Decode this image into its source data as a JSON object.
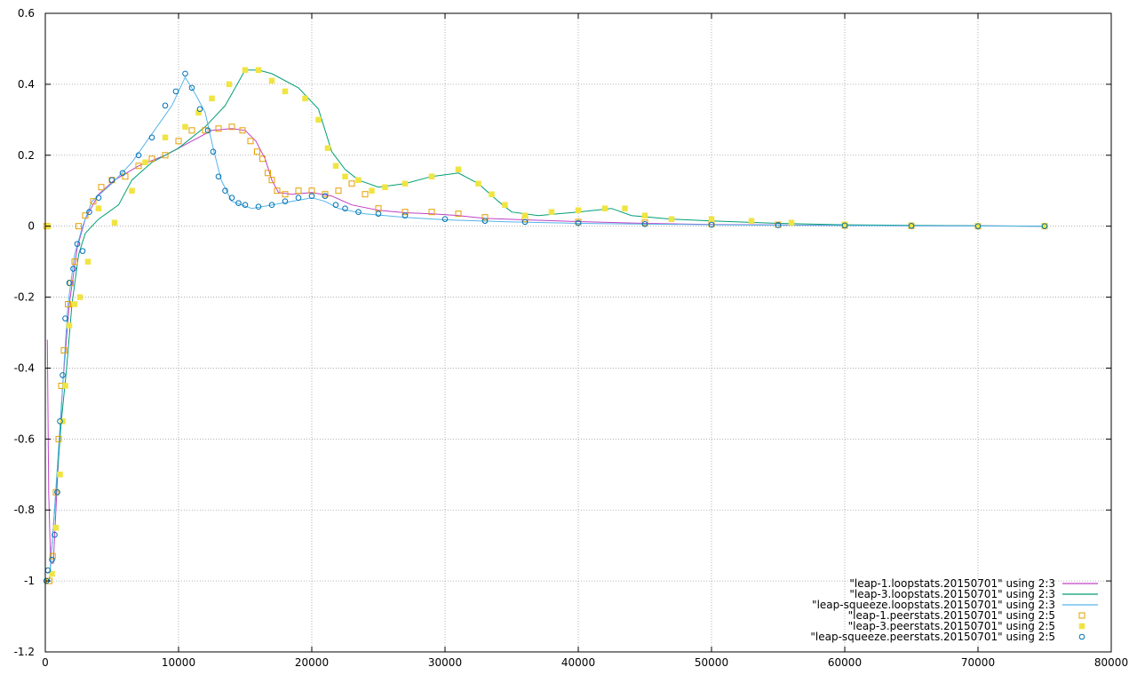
{
  "chart_data": {
    "type": "scatter",
    "title": "",
    "xlabel": "",
    "ylabel": "",
    "xlim": [
      0,
      80000
    ],
    "ylim": [
      -1.2,
      0.6
    ],
    "x_ticks": [
      0,
      10000,
      20000,
      30000,
      40000,
      50000,
      60000,
      70000,
      80000
    ],
    "x_tick_labels": [
      "0",
      "10000",
      "20000",
      "30000",
      "40000",
      "50000",
      "60000",
      "70000",
      "80000"
    ],
    "y_ticks": [
      0.6,
      0.4,
      0.2,
      0,
      -0.2,
      -0.4,
      -0.6,
      -0.8,
      -1,
      -1.2
    ],
    "y_tick_labels": [
      "0.6",
      "0.4",
      "0.2",
      "0",
      "-0.2",
      "-0.4",
      "-0.6",
      "-0.8",
      "-1",
      "-1.2"
    ],
    "grid": true,
    "legend_position": "bottom-right",
    "series": [
      {
        "name": "\"leap-1.loopstats.20150701\" using 2:3",
        "style": "line",
        "color": "#c040c8",
        "points": [
          [
            150,
            -0.32
          ],
          [
            250,
            -0.75
          ],
          [
            400,
            -0.95
          ],
          [
            600,
            -0.95
          ],
          [
            900,
            -0.72
          ],
          [
            1300,
            -0.45
          ],
          [
            1800,
            -0.22
          ],
          [
            2400,
            -0.06
          ],
          [
            3000,
            0.02
          ],
          [
            4000,
            0.09
          ],
          [
            5200,
            0.13
          ],
          [
            7000,
            0.17
          ],
          [
            9000,
            0.2
          ],
          [
            11000,
            0.24
          ],
          [
            12500,
            0.27
          ],
          [
            14000,
            0.275
          ],
          [
            15000,
            0.27
          ],
          [
            15800,
            0.24
          ],
          [
            16500,
            0.19
          ],
          [
            17000,
            0.13
          ],
          [
            17500,
            0.095
          ],
          [
            18500,
            0.09
          ],
          [
            20000,
            0.095
          ],
          [
            21500,
            0.085
          ],
          [
            23000,
            0.06
          ],
          [
            25000,
            0.045
          ],
          [
            27000,
            0.038
          ],
          [
            29000,
            0.035
          ],
          [
            31000,
            0.03
          ],
          [
            33000,
            0.022
          ],
          [
            36000,
            0.018
          ],
          [
            40000,
            0.013
          ],
          [
            45000,
            0.008
          ],
          [
            50000,
            0.005
          ],
          [
            60000,
            0.002
          ],
          [
            70000,
            0.001
          ],
          [
            75000,
            0.0
          ]
        ]
      },
      {
        "name": "\"leap-3.loopstats.20150701\" using 2:3",
        "style": "line",
        "color": "#009e73",
        "points": [
          [
            150,
            -1.0
          ],
          [
            300,
            -1.0
          ],
          [
            500,
            -0.9
          ],
          [
            800,
            -0.75
          ],
          [
            1200,
            -0.55
          ],
          [
            1600,
            -0.4
          ],
          [
            2000,
            -0.22
          ],
          [
            2500,
            -0.08
          ],
          [
            3000,
            -0.02
          ],
          [
            4000,
            0.02
          ],
          [
            5500,
            0.06
          ],
          [
            6500,
            0.13
          ],
          [
            8000,
            0.18
          ],
          [
            10000,
            0.22
          ],
          [
            12000,
            0.28
          ],
          [
            13500,
            0.34
          ],
          [
            15000,
            0.44
          ],
          [
            16000,
            0.44
          ],
          [
            17000,
            0.43
          ],
          [
            19000,
            0.39
          ],
          [
            20500,
            0.33
          ],
          [
            21500,
            0.21
          ],
          [
            22500,
            0.16
          ],
          [
            23500,
            0.13
          ],
          [
            25000,
            0.11
          ],
          [
            27000,
            0.12
          ],
          [
            29000,
            0.14
          ],
          [
            31000,
            0.15
          ],
          [
            32500,
            0.12
          ],
          [
            34000,
            0.07
          ],
          [
            35000,
            0.04
          ],
          [
            37000,
            0.03
          ],
          [
            40000,
            0.04
          ],
          [
            42500,
            0.05
          ],
          [
            44000,
            0.03
          ],
          [
            47000,
            0.02
          ],
          [
            50000,
            0.015
          ],
          [
            55000,
            0.008
          ],
          [
            60000,
            0.004
          ],
          [
            70000,
            0.001
          ],
          [
            75000,
            0.0
          ]
        ]
      },
      {
        "name": "\"leap-squeeze.loopstats.20150701\" using 2:3",
        "style": "line",
        "color": "#56b4e9",
        "points": [
          [
            150,
            -0.98
          ],
          [
            350,
            -0.97
          ],
          [
            600,
            -0.85
          ],
          [
            900,
            -0.68
          ],
          [
            1300,
            -0.45
          ],
          [
            1700,
            -0.22
          ],
          [
            2200,
            -0.08
          ],
          [
            2800,
            0.0
          ],
          [
            3500,
            0.07
          ],
          [
            5000,
            0.12
          ],
          [
            6500,
            0.18
          ],
          [
            8000,
            0.26
          ],
          [
            9500,
            0.34
          ],
          [
            10500,
            0.42
          ],
          [
            11300,
            0.37
          ],
          [
            12000,
            0.32
          ],
          [
            12600,
            0.22
          ],
          [
            13200,
            0.13
          ],
          [
            14000,
            0.07
          ],
          [
            15500,
            0.05
          ],
          [
            17000,
            0.06
          ],
          [
            18500,
            0.07
          ],
          [
            20000,
            0.08
          ],
          [
            21000,
            0.07
          ],
          [
            22000,
            0.05
          ],
          [
            24000,
            0.035
          ],
          [
            27000,
            0.025
          ],
          [
            30000,
            0.018
          ],
          [
            35000,
            0.012
          ],
          [
            40000,
            0.008
          ],
          [
            50000,
            0.004
          ],
          [
            60000,
            0.002
          ],
          [
            75000,
            0.0
          ]
        ]
      },
      {
        "name": "\"leap-1.peerstats.20150701\" using 2:5",
        "style": "marker-open-square",
        "color": "#e69f00",
        "points": [
          [
            100,
            0.0
          ],
          [
            300,
            -1.0
          ],
          [
            550,
            -0.93
          ],
          [
            800,
            -0.75
          ],
          [
            1000,
            -0.6
          ],
          [
            1200,
            -0.45
          ],
          [
            1400,
            -0.35
          ],
          [
            1700,
            -0.22
          ],
          [
            1900,
            -0.16
          ],
          [
            2200,
            -0.1
          ],
          [
            2500,
            0.0
          ],
          [
            3000,
            0.03
          ],
          [
            3600,
            0.07
          ],
          [
            4200,
            0.11
          ],
          [
            5000,
            0.13
          ],
          [
            6000,
            0.14
          ],
          [
            7000,
            0.17
          ],
          [
            8000,
            0.19
          ],
          [
            9000,
            0.2
          ],
          [
            10000,
            0.24
          ],
          [
            11000,
            0.27
          ],
          [
            12000,
            0.27
          ],
          [
            13000,
            0.275
          ],
          [
            14000,
            0.28
          ],
          [
            14800,
            0.27
          ],
          [
            15400,
            0.24
          ],
          [
            15900,
            0.21
          ],
          [
            16300,
            0.19
          ],
          [
            16700,
            0.15
          ],
          [
            17000,
            0.13
          ],
          [
            17400,
            0.1
          ],
          [
            18000,
            0.09
          ],
          [
            19000,
            0.1
          ],
          [
            20000,
            0.1
          ],
          [
            21000,
            0.09
          ],
          [
            22000,
            0.1
          ],
          [
            23000,
            0.12
          ],
          [
            24000,
            0.09
          ],
          [
            25000,
            0.05
          ],
          [
            27000,
            0.04
          ],
          [
            29000,
            0.04
          ],
          [
            31000,
            0.035
          ],
          [
            33000,
            0.025
          ],
          [
            36000,
            0.02
          ],
          [
            40000,
            0.012
          ],
          [
            45000,
            0.01
          ],
          [
            50000,
            0.006
          ],
          [
            55000,
            0.004
          ],
          [
            60000,
            0.002
          ],
          [
            65000,
            0.001
          ],
          [
            70000,
            0.0
          ],
          [
            75000,
            0.0
          ]
        ]
      },
      {
        "name": "\"leap-3.peerstats.20150701\" using 2:5",
        "style": "marker-filled-square",
        "color": "#f0e442",
        "points": [
          [
            200,
            0.0
          ],
          [
            500,
            -0.98
          ],
          [
            800,
            -0.85
          ],
          [
            1100,
            -0.7
          ],
          [
            1300,
            -0.55
          ],
          [
            1500,
            -0.45
          ],
          [
            1800,
            -0.28
          ],
          [
            2200,
            -0.22
          ],
          [
            2600,
            -0.2
          ],
          [
            3200,
            -0.1
          ],
          [
            4000,
            0.05
          ],
          [
            5200,
            0.01
          ],
          [
            6500,
            0.1
          ],
          [
            7500,
            0.18
          ],
          [
            9000,
            0.25
          ],
          [
            10500,
            0.28
          ],
          [
            11500,
            0.32
          ],
          [
            12500,
            0.36
          ],
          [
            13800,
            0.4
          ],
          [
            15000,
            0.44
          ],
          [
            16000,
            0.44
          ],
          [
            17000,
            0.41
          ],
          [
            18000,
            0.38
          ],
          [
            19500,
            0.36
          ],
          [
            20500,
            0.3
          ],
          [
            21200,
            0.22
          ],
          [
            21800,
            0.17
          ],
          [
            22500,
            0.14
          ],
          [
            23500,
            0.13
          ],
          [
            24500,
            0.1
          ],
          [
            25500,
            0.11
          ],
          [
            27000,
            0.12
          ],
          [
            29000,
            0.14
          ],
          [
            31000,
            0.16
          ],
          [
            32500,
            0.12
          ],
          [
            33500,
            0.09
          ],
          [
            34500,
            0.06
          ],
          [
            36000,
            0.03
          ],
          [
            38000,
            0.04
          ],
          [
            40000,
            0.045
          ],
          [
            42000,
            0.05
          ],
          [
            43500,
            0.05
          ],
          [
            45000,
            0.03
          ],
          [
            47000,
            0.02
          ],
          [
            50000,
            0.02
          ],
          [
            53000,
            0.015
          ],
          [
            56000,
            0.01
          ],
          [
            60000,
            0.005
          ],
          [
            65000,
            0.003
          ],
          [
            70000,
            0.001
          ],
          [
            75000,
            0.0
          ]
        ]
      },
      {
        "name": "\"leap-squeeze.peerstats.20150701\" using 2:5",
        "style": "marker-open-circle",
        "color": "#0072b2",
        "points": [
          [
            80,
            -1.0
          ],
          [
            200,
            -0.97
          ],
          [
            500,
            -0.94
          ],
          [
            700,
            -0.87
          ],
          [
            900,
            -0.75
          ],
          [
            1100,
            -0.55
          ],
          [
            1300,
            -0.42
          ],
          [
            1500,
            -0.26
          ],
          [
            1800,
            -0.16
          ],
          [
            2100,
            -0.12
          ],
          [
            2400,
            -0.05
          ],
          [
            2800,
            -0.07
          ],
          [
            3300,
            0.04
          ],
          [
            4000,
            0.08
          ],
          [
            5000,
            0.13
          ],
          [
            5800,
            0.15
          ],
          [
            7000,
            0.2
          ],
          [
            8000,
            0.25
          ],
          [
            9000,
            0.34
          ],
          [
            9800,
            0.38
          ],
          [
            10500,
            0.43
          ],
          [
            11000,
            0.39
          ],
          [
            11600,
            0.33
          ],
          [
            12200,
            0.27
          ],
          [
            12600,
            0.21
          ],
          [
            13000,
            0.14
          ],
          [
            13500,
            0.1
          ],
          [
            14000,
            0.08
          ],
          [
            14500,
            0.065
          ],
          [
            15000,
            0.06
          ],
          [
            16000,
            0.055
          ],
          [
            17000,
            0.06
          ],
          [
            18000,
            0.07
          ],
          [
            19000,
            0.08
          ],
          [
            20000,
            0.085
          ],
          [
            21000,
            0.085
          ],
          [
            21800,
            0.06
          ],
          [
            22500,
            0.05
          ],
          [
            23500,
            0.04
          ],
          [
            25000,
            0.035
          ],
          [
            27000,
            0.03
          ],
          [
            30000,
            0.02
          ],
          [
            33000,
            0.015
          ],
          [
            36000,
            0.012
          ],
          [
            40000,
            0.009
          ],
          [
            45000,
            0.006
          ],
          [
            50000,
            0.004
          ],
          [
            55000,
            0.003
          ],
          [
            60000,
            0.002
          ],
          [
            65000,
            0.001
          ],
          [
            70000,
            0.0
          ],
          [
            75000,
            0.0
          ]
        ]
      }
    ]
  }
}
